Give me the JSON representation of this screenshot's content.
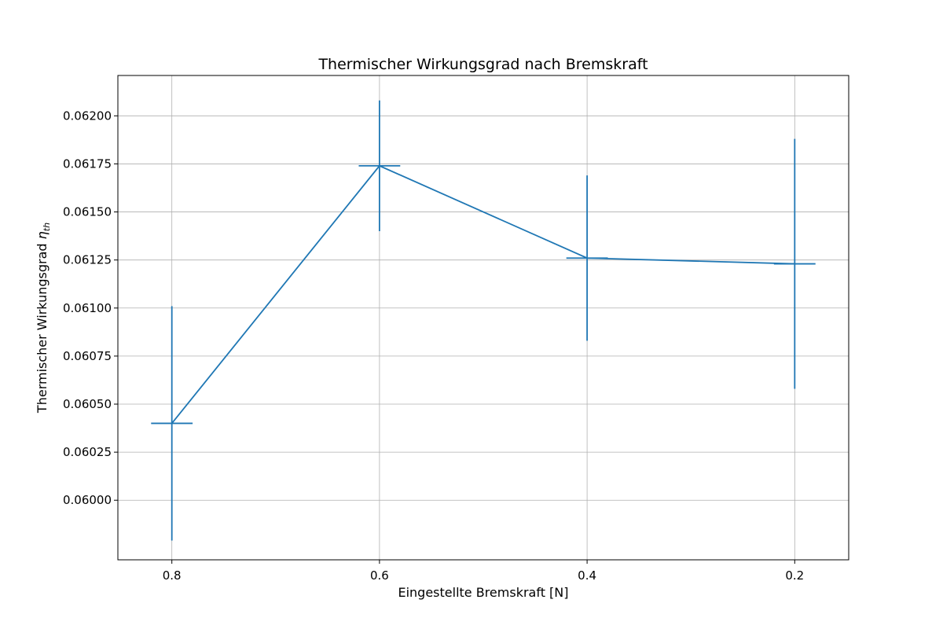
{
  "chart_data": {
    "type": "line",
    "title": "Thermischer Wirkungsgrad nach Bremskraft",
    "xlabel": "Eingestellte Bremskraft [N]",
    "ylabel_text": "Thermischer Wirkungsgrad ",
    "ylabel_symbol": "η",
    "ylabel_subscript": "th",
    "x_inverted": true,
    "xlim": [
      0.852,
      0.148
    ],
    "ylim": [
      0.05969,
      0.06221
    ],
    "xticks": [
      0.8,
      0.6,
      0.4,
      0.2
    ],
    "xtick_labels": [
      "0.8",
      "0.6",
      "0.4",
      "0.2"
    ],
    "yticks": [
      0.06,
      0.06025,
      0.0605,
      0.06075,
      0.061,
      0.06125,
      0.0615,
      0.06175,
      0.062
    ],
    "ytick_labels": [
      "0.06000",
      "0.06025",
      "0.06050",
      "0.06075",
      "0.06100",
      "0.06125",
      "0.06150",
      "0.06175",
      "0.06200"
    ],
    "grid": true,
    "color": "#1f77b4",
    "series": [
      {
        "x": [
          0.8,
          0.6,
          0.4,
          0.2
        ],
        "y": [
          0.0604,
          0.06174,
          0.06126,
          0.06123
        ],
        "xerr": [
          0.02,
          0.02,
          0.02,
          0.02
        ],
        "yerr": [
          0.00061,
          0.00034,
          0.00043,
          0.00065
        ]
      }
    ]
  }
}
